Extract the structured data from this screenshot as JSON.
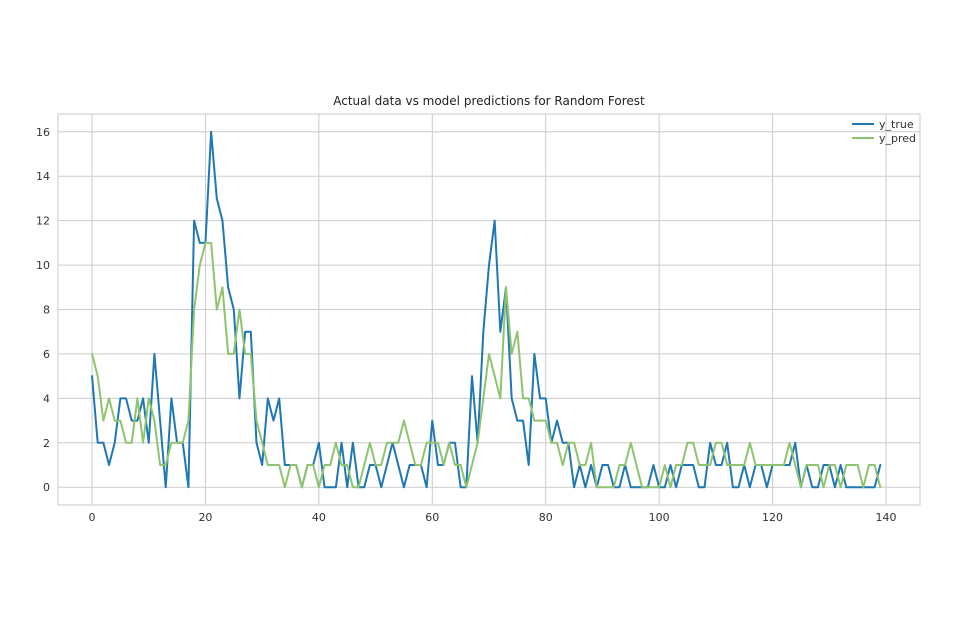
{
  "chart_data": {
    "type": "line",
    "title": "Actual data vs model predictions for Random Forest",
    "xlabel": "",
    "ylabel": "",
    "xlim": [
      -6,
      146
    ],
    "ylim": [
      -0.8,
      16.8
    ],
    "xticks": [
      0,
      20,
      40,
      60,
      80,
      100,
      120,
      140
    ],
    "yticks": [
      0,
      2,
      4,
      6,
      8,
      10,
      12,
      14,
      16
    ],
    "grid": true,
    "legend_position": "top-right",
    "series": [
      {
        "name": "y_true",
        "color": "#1f77b4",
        "values": [
          5,
          2,
          2,
          1,
          2,
          4,
          4,
          3,
          3,
          4,
          2,
          6,
          3,
          0,
          4,
          2,
          2,
          0,
          12,
          11,
          11,
          16,
          13,
          12,
          9,
          8,
          4,
          7,
          7,
          2,
          1,
          4,
          3,
          4,
          1,
          1,
          1,
          0,
          1,
          1,
          2,
          0,
          0,
          0,
          2,
          0,
          2,
          0,
          0,
          1,
          1,
          0,
          1,
          2,
          1,
          0,
          1,
          1,
          1,
          0,
          3,
          1,
          1,
          2,
          2,
          0,
          0,
          5,
          2,
          7,
          10,
          12,
          7,
          9,
          4,
          3,
          3,
          1,
          6,
          4,
          4,
          2,
          3,
          2,
          2,
          0,
          1,
          0,
          1,
          0,
          1,
          1,
          0,
          0,
          1,
          0,
          0,
          0,
          0,
          1,
          0,
          0,
          1,
          0,
          1,
          1,
          1,
          0,
          0,
          2,
          1,
          1,
          2,
          0,
          0,
          1,
          0,
          1,
          1,
          0,
          1,
          1,
          1,
          1,
          2,
          0,
          1,
          0,
          0,
          1,
          1,
          0,
          1,
          0,
          0,
          0,
          0,
          0,
          0,
          1
        ]
      },
      {
        "name": "y_pred",
        "color": "#8fc46f",
        "values": [
          6,
          5,
          3,
          4,
          3,
          3,
          2,
          2,
          4,
          2,
          4,
          3,
          1,
          1,
          2,
          2,
          2,
          3,
          8,
          10,
          11,
          11,
          8,
          9,
          6,
          6,
          8,
          6,
          6,
          3,
          2,
          1,
          1,
          1,
          0,
          1,
          1,
          0,
          1,
          1,
          0,
          1,
          1,
          2,
          1,
          1,
          0,
          0,
          1,
          2,
          1,
          1,
          2,
          2,
          2,
          3,
          2,
          1,
          1,
          2,
          2,
          2,
          1,
          2,
          1,
          1,
          0,
          1,
          2,
          4,
          6,
          5,
          4,
          9,
          6,
          7,
          4,
          4,
          3,
          3,
          3,
          2,
          2,
          1,
          2,
          2,
          1,
          1,
          2,
          0,
          0,
          0,
          0,
          1,
          1,
          2,
          1,
          0,
          0,
          0,
          0,
          1,
          0,
          1,
          1,
          2,
          2,
          1,
          1,
          1,
          2,
          2,
          1,
          1,
          1,
          1,
          2,
          1,
          1,
          1,
          1,
          1,
          1,
          2,
          1,
          0,
          1,
          1,
          1,
          0,
          1,
          1,
          0,
          1,
          1,
          1,
          0,
          1,
          1,
          0
        ]
      }
    ]
  }
}
